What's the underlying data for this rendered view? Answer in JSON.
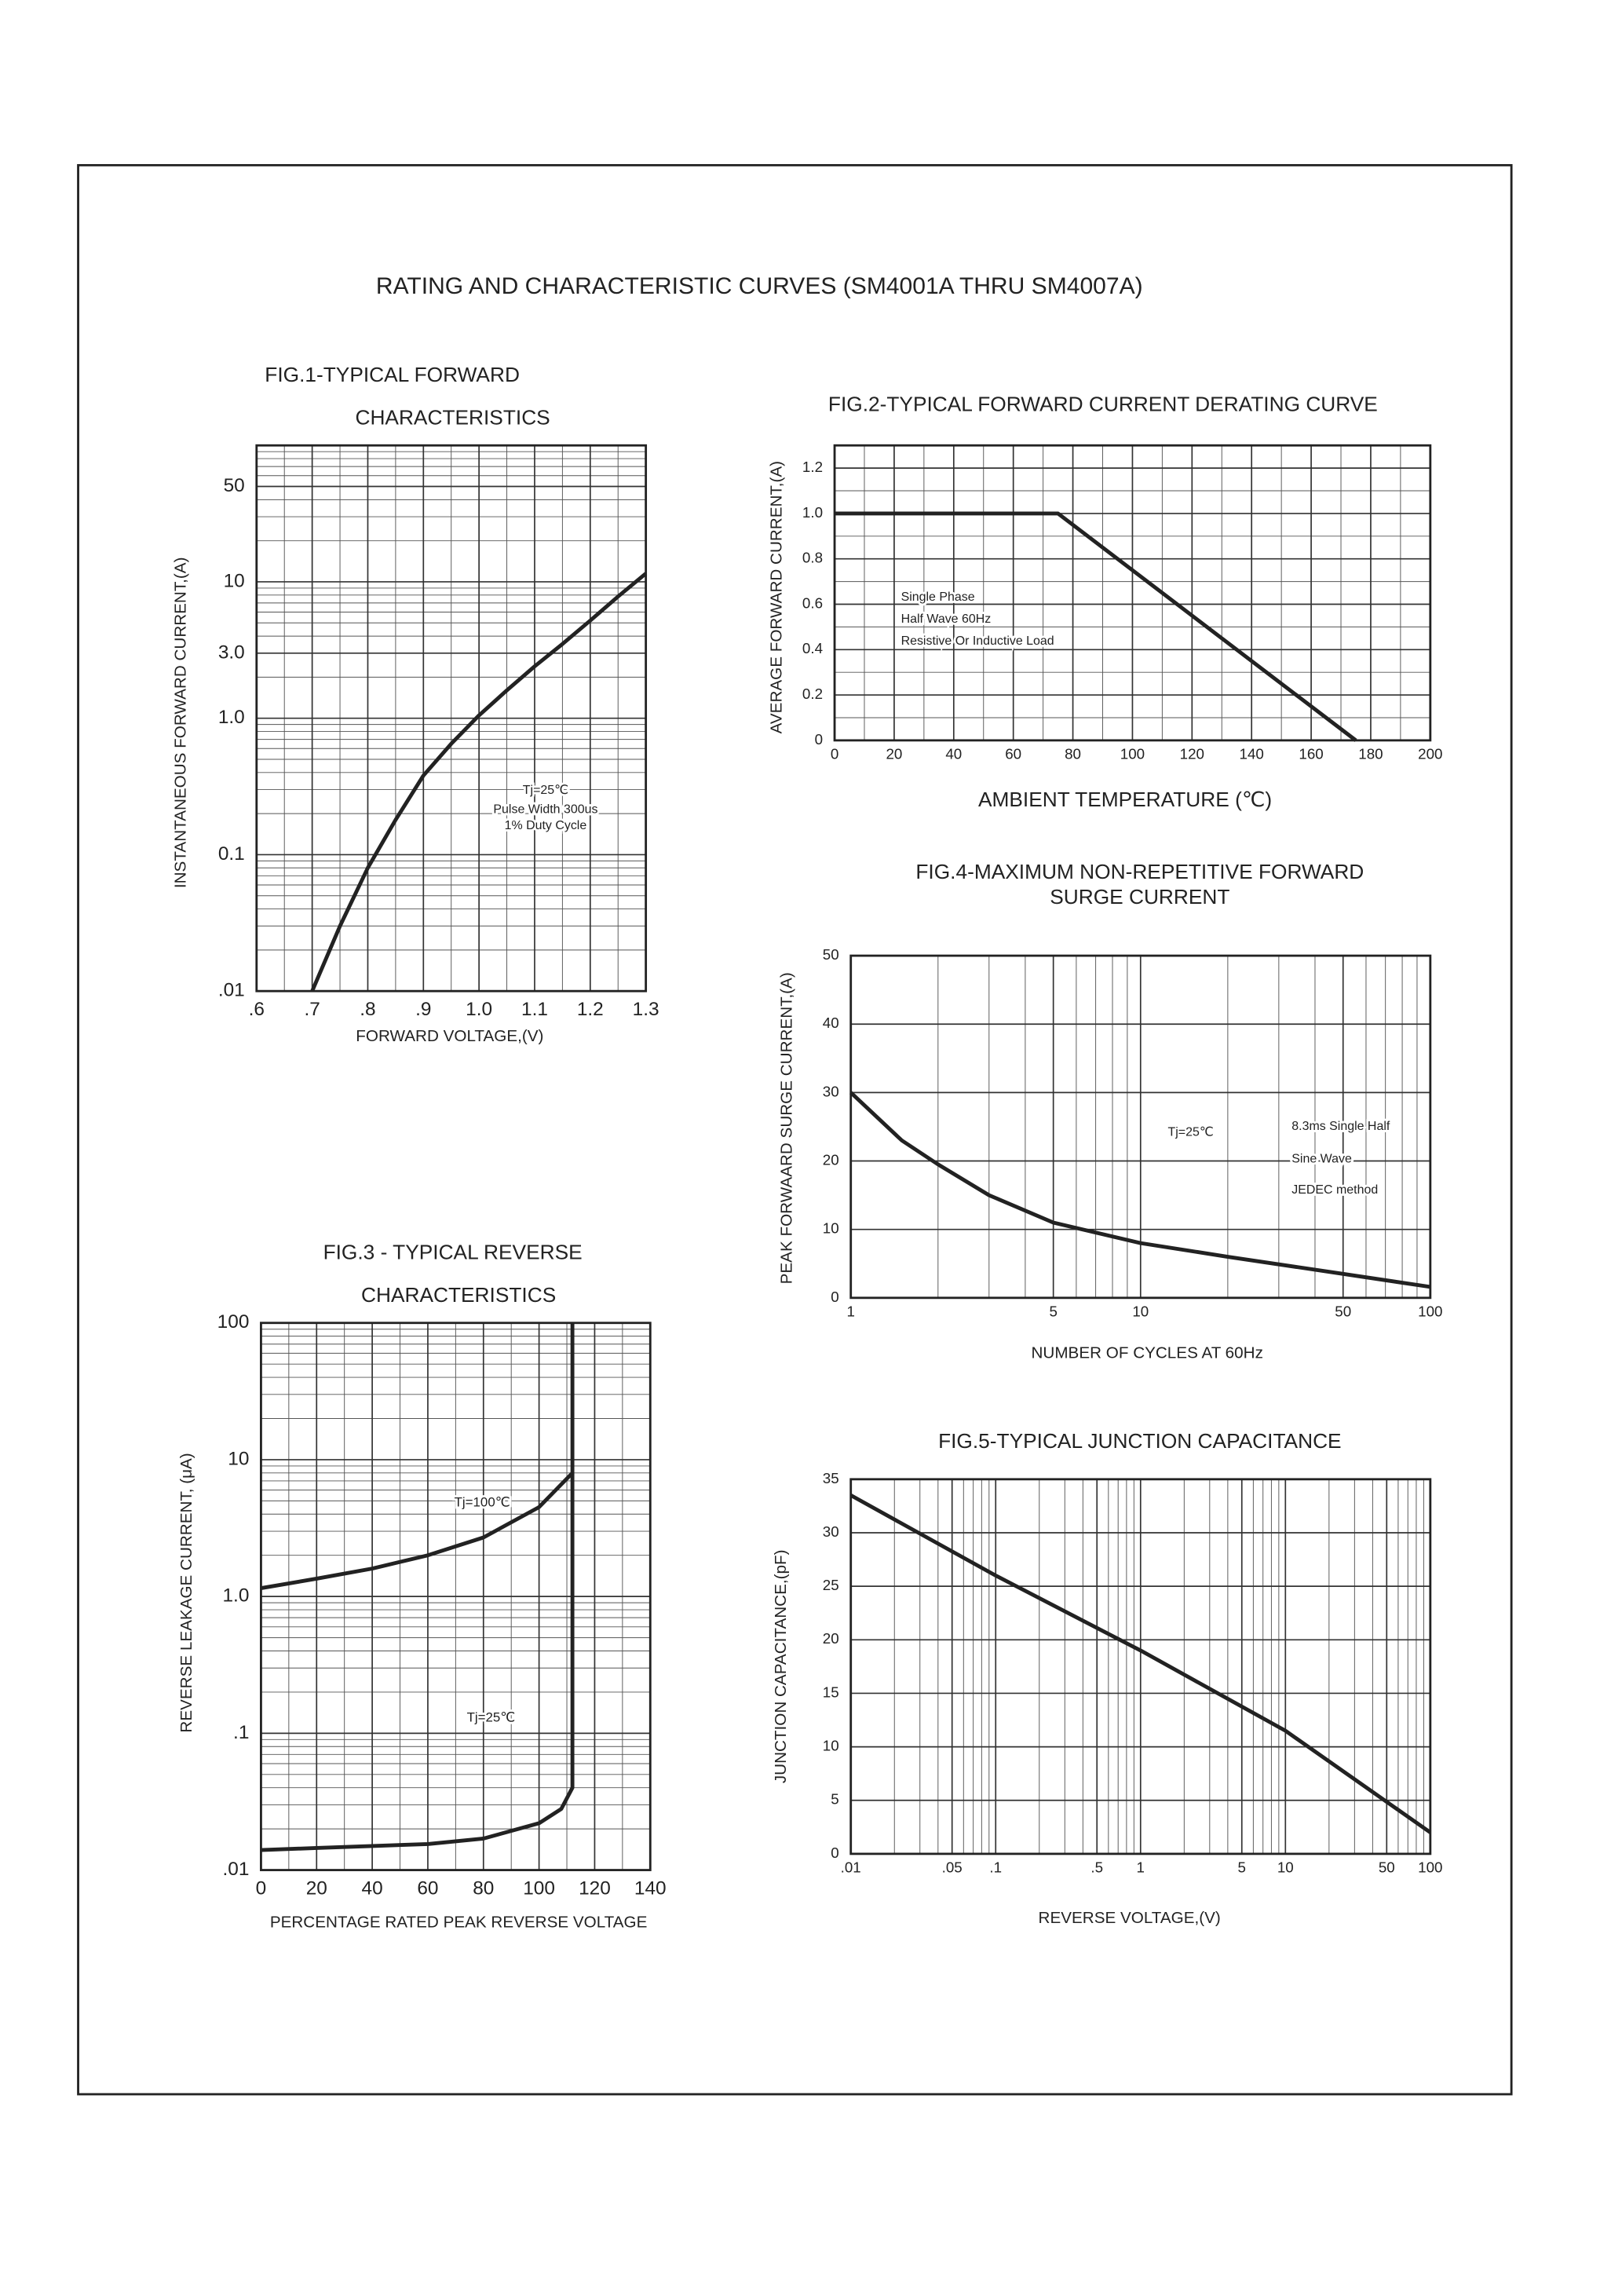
{
  "title": "RATING AND CHARACTERISTIC CURVES (SM4001A THRU SM4007A)",
  "chart_data": [
    {
      "type": "line",
      "title": [
        "FIG.1-TYPICAL FORWARD",
        "CHARACTERISTICS"
      ],
      "xlabel": "FORWARD VOLTAGE,(V)",
      "ylabel": "INSTANTANEOUS FORWARD CURRENT,(A)",
      "x": [
        0.7,
        0.75,
        0.8,
        0.85,
        0.9,
        0.95,
        1.0,
        1.05,
        1.1,
        1.15,
        1.2,
        1.25,
        1.3
      ],
      "series": [
        {
          "color": "#222222",
          "values": [
            0.01,
            0.03,
            0.08,
            0.18,
            0.38,
            0.65,
            1.05,
            1.6,
            2.4,
            3.5,
            5.2,
            7.8,
            11.5
          ]
        }
      ],
      "xlim": [
        0.6,
        1.3
      ],
      "ylim": [
        0.01,
        100
      ],
      "yscale": "log",
      "xticks": [
        {
          "value": 0.6,
          "label": ".6"
        },
        {
          "value": 0.7,
          "label": ".7"
        },
        {
          "value": 0.8,
          "label": ".8"
        },
        {
          "value": 0.9,
          "label": ".9"
        },
        {
          "value": 1.0,
          "label": "1.0"
        },
        1.1,
        1.2,
        1.3
      ],
      "yticks": [
        {
          "value": 0.01,
          "label": ".01"
        },
        0.1,
        {
          "value": 1,
          "label": "1.0"
        },
        {
          "value": 3,
          "label": "3.0"
        },
        10,
        50
      ],
      "grid": true,
      "annotations": [
        "Tj=25℃",
        "Pulse Width 300us",
        "1% Duty Cycle"
      ]
    },
    {
      "type": "line",
      "title": [
        "FIG.2-TYPICAL FORWARD CURRENT DERATING CURVE"
      ],
      "xlabel": "AMBIENT TEMPERATURE (℃)",
      "ylabel": "AVERAGE FORWARD CURRENT,(A)",
      "x": [
        0,
        75,
        175
      ],
      "series": [
        {
          "color": "#222222",
          "values": [
            1.0,
            1.0,
            0
          ]
        }
      ],
      "xlim": [
        0,
        200
      ],
      "ylim": [
        0,
        1.3
      ],
      "xticks": [
        0,
        20,
        40,
        60,
        80,
        100,
        120,
        140,
        160,
        180,
        200
      ],
      "yticks": [
        0,
        0.2,
        0.4,
        0.6,
        0.8,
        {
          "value": 1.0,
          "label": "1.0"
        },
        1.2
      ],
      "grid": true,
      "annotations": [
        "Single Phase",
        "Half Wave 60Hz",
        "Resistive Or Inductive Load"
      ]
    },
    {
      "type": "line",
      "title": [
        "FIG.3 - TYPICAL REVERSE",
        "CHARACTERISTICS"
      ],
      "xlabel": "PERCENTAGE RATED PEAK REVERSE VOLTAGE",
      "ylabel": "REVERSE LEAKAGE CURRENT, (μA)",
      "series": [
        {
          "name": "Tj=100℃",
          "color": "#222222",
          "x": [
            0,
            20,
            40,
            60,
            80,
            100,
            112
          ],
          "values": [
            1.15,
            1.35,
            1.6,
            2.0,
            2.7,
            4.5,
            8
          ]
        },
        {
          "name": "Tj=25℃",
          "color": "#222222",
          "x": [
            0,
            20,
            40,
            60,
            80,
            100,
            108,
            112,
            112
          ],
          "values": [
            0.014,
            0.0145,
            0.015,
            0.0155,
            0.017,
            0.022,
            0.028,
            0.04,
            100
          ]
        }
      ],
      "xlim": [
        0,
        140
      ],
      "ylim": [
        0.01,
        100
      ],
      "yscale": "log",
      "xticks": [
        0,
        20,
        40,
        60,
        80,
        100,
        120,
        140
      ],
      "yticks": [
        {
          "value": 0.01,
          "label": ".01"
        },
        {
          "value": 0.1,
          "label": ".1"
        },
        {
          "value": 1,
          "label": "1.0"
        },
        10,
        100
      ],
      "grid": true
    },
    {
      "type": "line",
      "title": [
        "FIG.4-MAXIMUM NON-REPETITIVE FORWARD",
        "SURGE CURRENT"
      ],
      "xlabel": "NUMBER OF CYCLES AT 60Hz",
      "ylabel": "PEAK FORWAARD SURGE CURRENT,(A)",
      "x": [
        1,
        1.5,
        2,
        3,
        5,
        10,
        20,
        50,
        100
      ],
      "series": [
        {
          "color": "#222222",
          "values": [
            30,
            23,
            19.5,
            15,
            11,
            8,
            6,
            3.5,
            1.6
          ]
        }
      ],
      "xlim": [
        1,
        100
      ],
      "ylim": [
        0,
        50
      ],
      "xscale": "log",
      "xticks": [
        1,
        5,
        10,
        50,
        100
      ],
      "yticks": [
        0,
        10,
        20,
        30,
        40,
        50
      ],
      "grid": true,
      "annotations": [
        "Tj=25℃",
        "8.3ms Single Half",
        "Sine Wave",
        "JEDEC method"
      ]
    },
    {
      "type": "line",
      "title": [
        "FIG.5-TYPICAL JUNCTION CAPACITANCE"
      ],
      "xlabel": "REVERSE VOLTAGE,(V)",
      "ylabel": "JUNCTION CAPACITANCE,(pF)",
      "x": [
        0.01,
        0.1,
        1,
        10,
        100
      ],
      "series": [
        {
          "color": "#222222",
          "values": [
            33.5,
            26,
            19,
            11.5,
            2
          ]
        }
      ],
      "xlim": [
        0.01,
        100
      ],
      "ylim": [
        0,
        35
      ],
      "xscale": "log",
      "xticks": [
        {
          "value": 0.01,
          "label": ".01"
        },
        {
          "value": 0.05,
          "label": ".05"
        },
        {
          "value": 0.1,
          "label": ".1"
        },
        {
          "value": 0.5,
          "label": ".5"
        },
        1,
        5,
        10,
        50,
        100
      ],
      "yticks": [
        0,
        5,
        10,
        15,
        20,
        25,
        30,
        35
      ],
      "grid": true
    }
  ]
}
